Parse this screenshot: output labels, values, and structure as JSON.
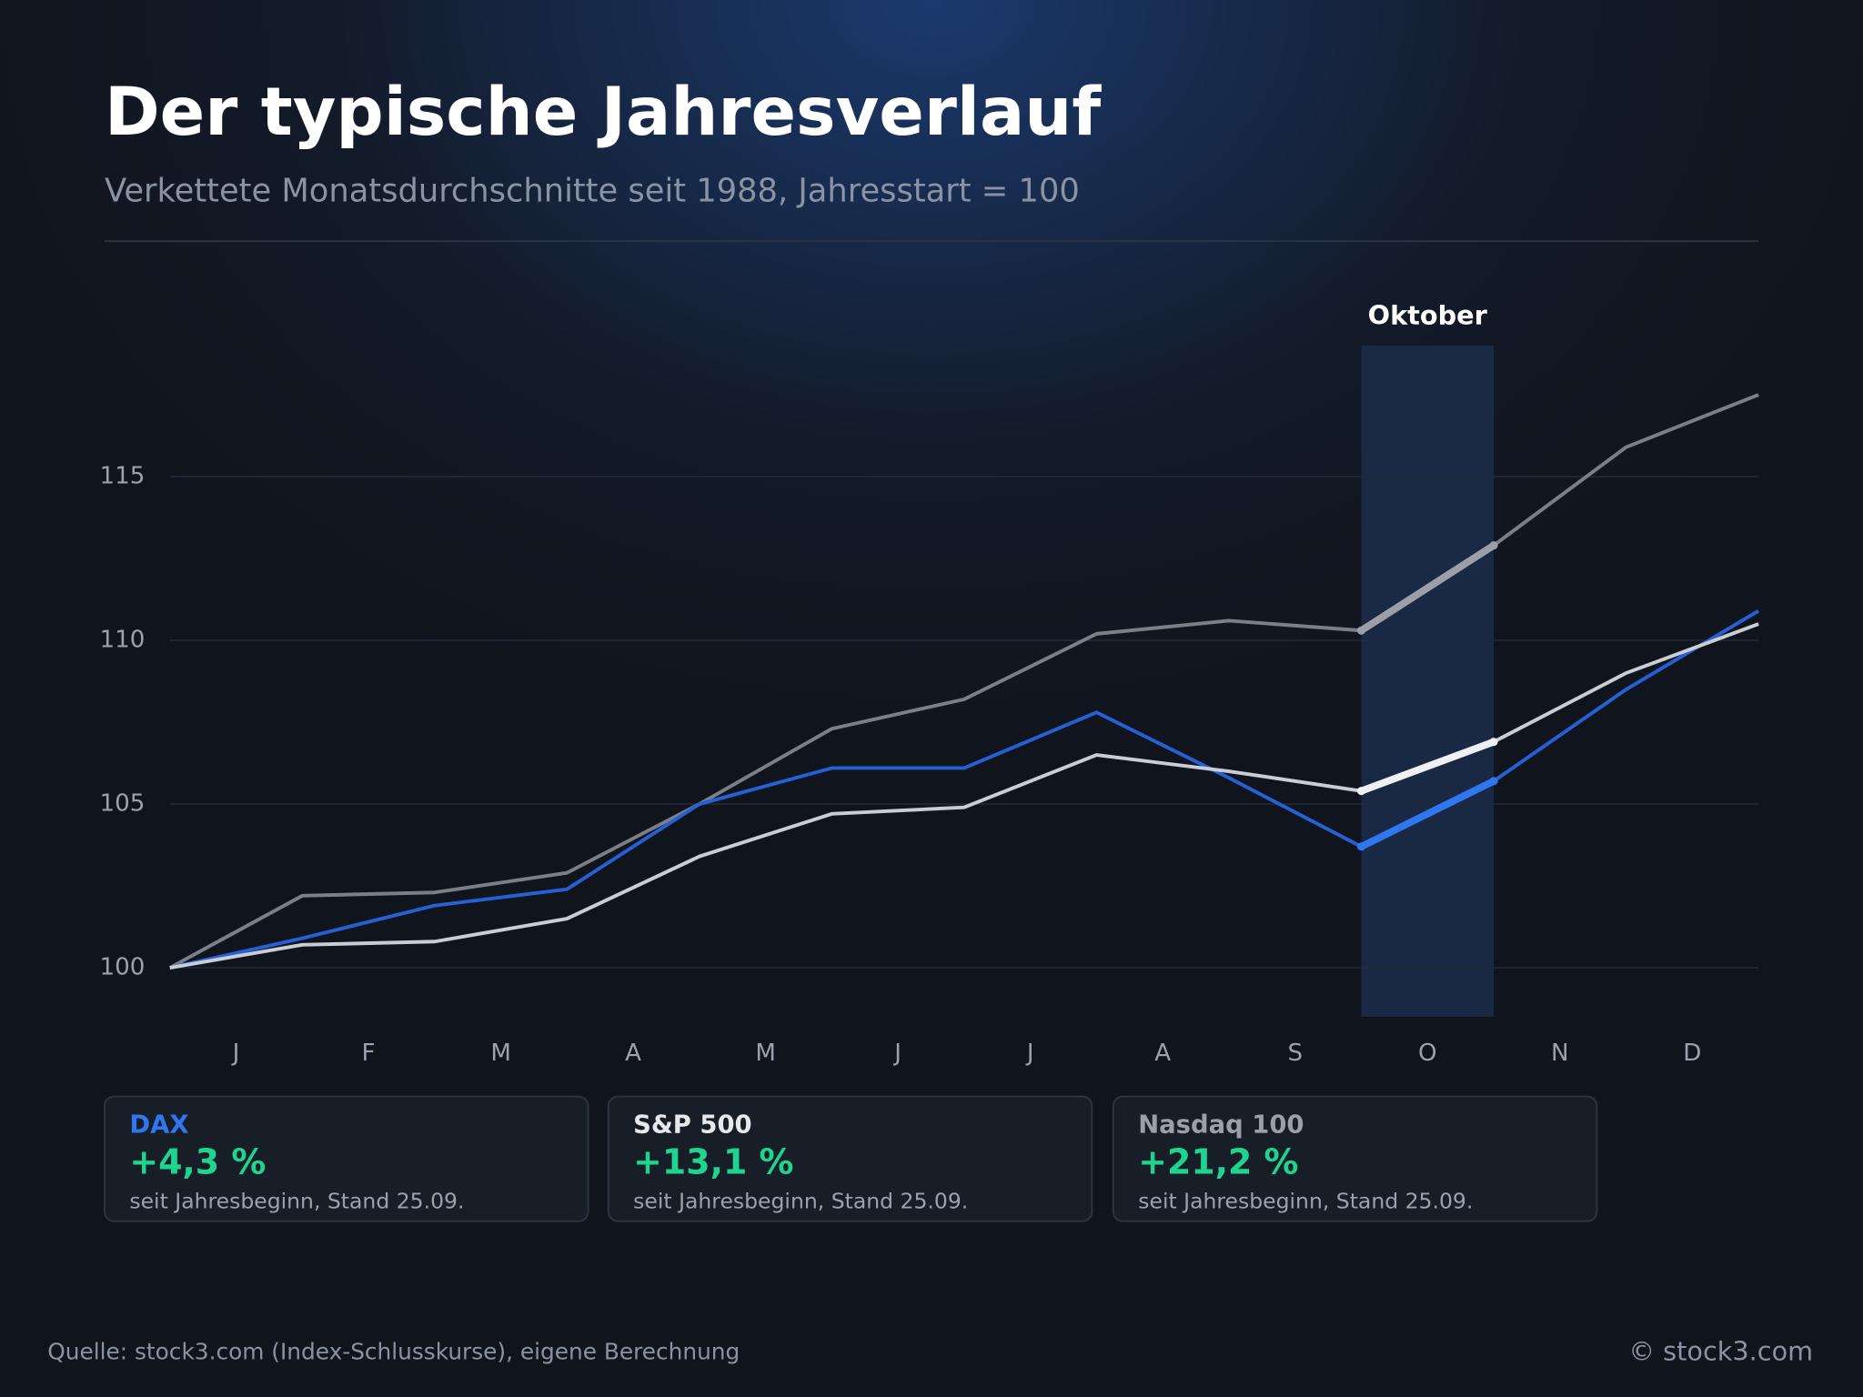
{
  "chart_data": {
    "type": "line",
    "title": "Der typische Jahresverlauf",
    "subtitle": "Verkettete Monatsdurchschnitte seit 1988, Jahresstart = 100",
    "categories": [
      null,
      "J",
      "F",
      "M",
      "A",
      "M",
      "J",
      "J",
      "A",
      "S",
      "O",
      "N",
      "D"
    ],
    "highlight_label": "Oktober",
    "series": [
      {
        "name": "Nasdaq 100",
        "color": "#7b8088",
        "highlight_color": "#9ba0a8",
        "ytd_label": "+21,2 %",
        "values": [
          100,
          102.2,
          102.3,
          102.9,
          105.0,
          107.3,
          108.2,
          110.2,
          110.6,
          110.3,
          112.9,
          115.9,
          117.5
        ]
      },
      {
        "name": "DAX",
        "color": "#2560d4",
        "highlight_color": "#2f76f0",
        "ytd_label": "+4,3 %",
        "values": [
          100,
          100.9,
          101.9,
          102.4,
          105.0,
          106.1,
          106.1,
          107.8,
          105.8,
          103.7,
          105.7,
          108.5,
          110.9
        ]
      },
      {
        "name": "S&P 500",
        "color": "#c9cdd5",
        "highlight_color": "#eef0f4",
        "ytd_label": "+13,1 %",
        "values": [
          100,
          100.7,
          100.8,
          101.5,
          103.4,
          104.7,
          104.9,
          106.5,
          106.0,
          105.4,
          106.9,
          109.0,
          110.5
        ]
      }
    ],
    "card_note": "seit Jahresbeginn, Stand 25.09.",
    "ylim": [
      98.5,
      119
    ],
    "yticks": [
      100,
      105,
      110,
      115
    ],
    "grid": true,
    "source": "Quelle: stock3.com (Index-Schlusskurse), eigene Berechnung",
    "copyright": "© stock3.com"
  }
}
